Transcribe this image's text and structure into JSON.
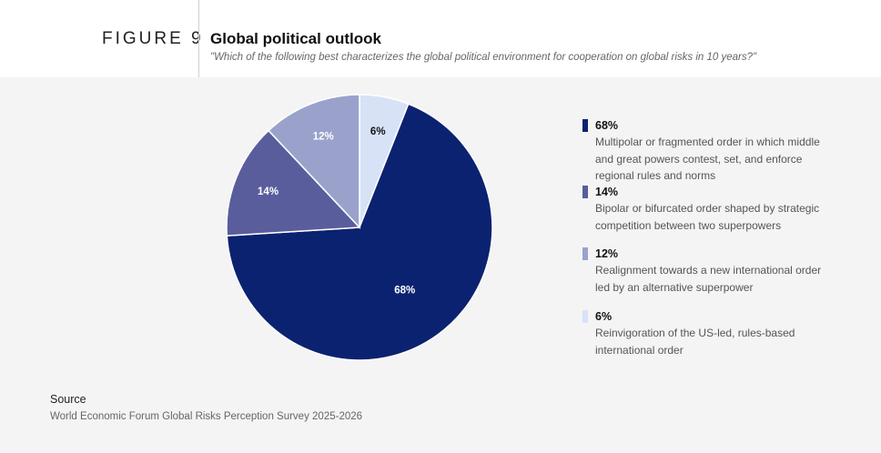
{
  "header": {
    "figure_label": "FIGURE 9",
    "title": "Global political outlook",
    "subtitle": "\"Which of the following best characterizes the global political environment for cooperation on global risks in 10 years?\""
  },
  "chart_data": {
    "type": "pie",
    "slices": [
      {
        "label": "Multipolar or fragmented order in which middle and great powers contest, set, and enforce regional rules and norms",
        "value": 68,
        "value_label": "68%",
        "color": "#0b2270",
        "label_color": "#ffffff"
      },
      {
        "label": "Bipolar or bifurcated order shaped by strategic competition between two superpowers",
        "value": 14,
        "value_label": "14%",
        "color": "#5a5d9c",
        "label_color": "#ffffff"
      },
      {
        "label": "Realignment towards a new international order led by an alternative superpower",
        "value": 12,
        "value_label": "12%",
        "color": "#9aa2cc",
        "label_color": "#ffffff"
      },
      {
        "label": "Reinvigoration of the US-led, rules-based international order",
        "value": 6,
        "value_label": "6%",
        "color": "#d7e2f7",
        "label_color": "#111111"
      }
    ]
  },
  "legend": {
    "items": [
      {
        "pct": "68%",
        "text_lines": [
          "Multipolar or fragmented order in which middle",
          "and great powers contest, set, and enforce",
          "regional rules and norms"
        ]
      },
      {
        "pct": "14%",
        "text_lines": [
          "Bipolar or bifurcated order shaped by strategic",
          "competition between two superpowers"
        ]
      },
      {
        "pct": "12%",
        "text_lines": [
          "Realignment towards a new international order",
          "led by an alternative superpower"
        ]
      },
      {
        "pct": "6%",
        "text_lines": [
          "Reinvigoration of the US-led, rules-based",
          "international order"
        ]
      }
    ]
  },
  "source": {
    "label": "Source",
    "text": "World Economic Forum Global Risks Perception Survey 2025-2026"
  }
}
